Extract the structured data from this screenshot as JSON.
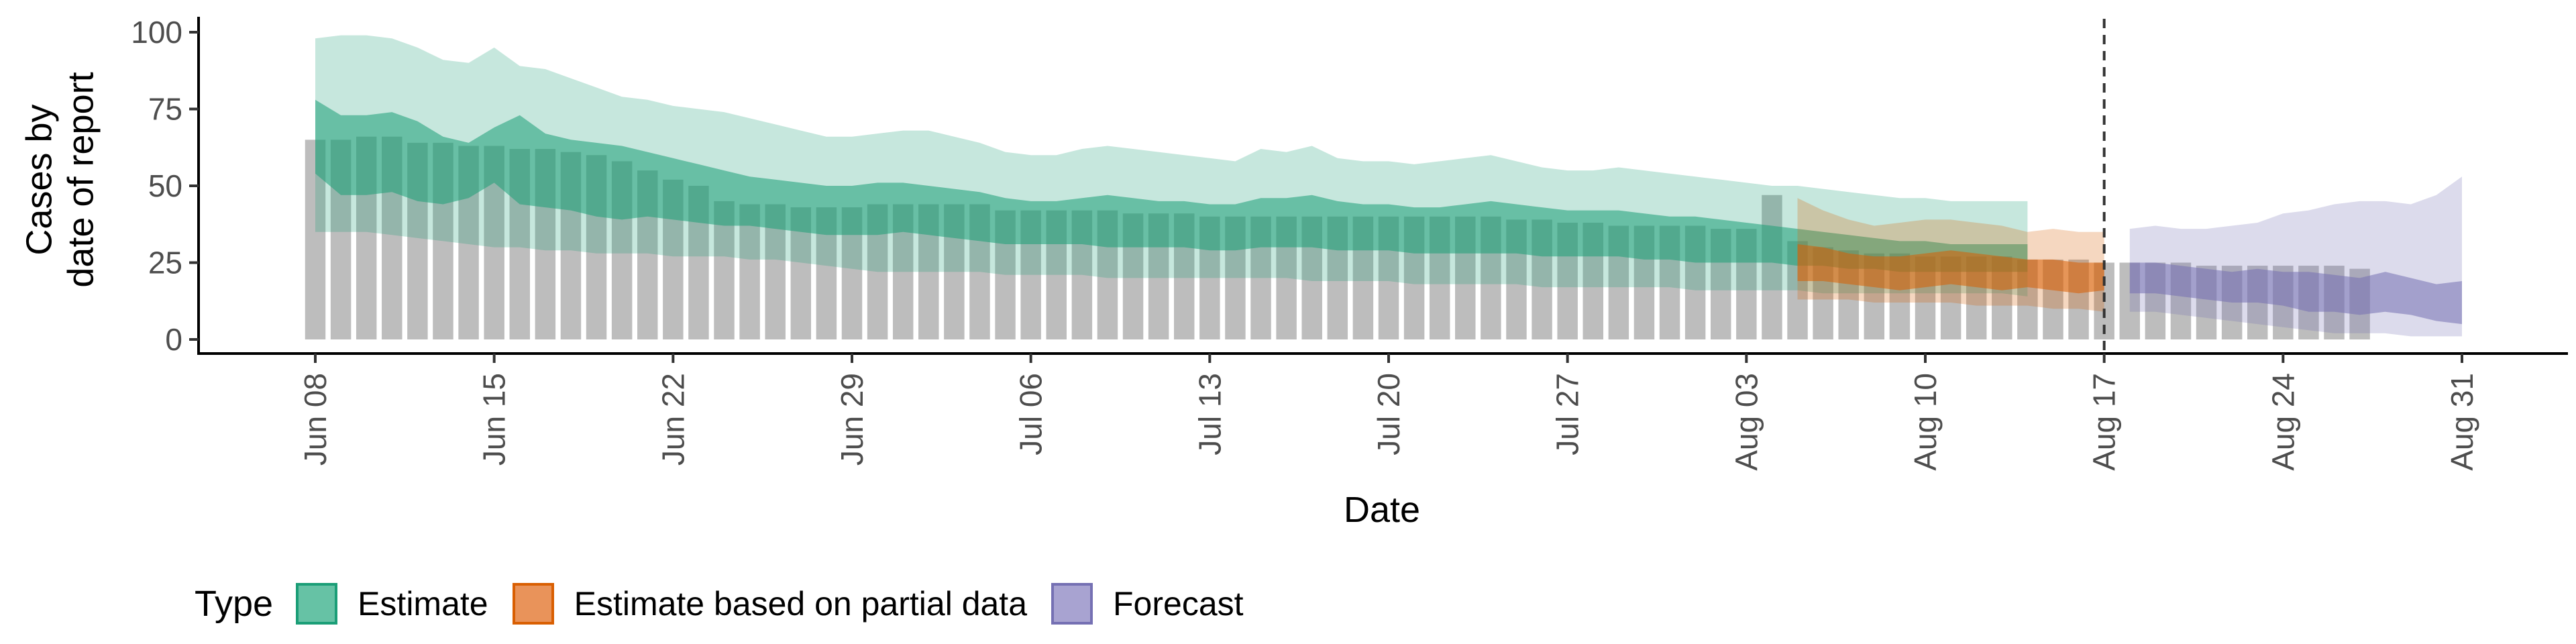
{
  "chart_data": {
    "type": "area",
    "title": "",
    "xlabel": "Date",
    "ylabel": [
      "Cases by",
      "date of report"
    ],
    "ylim": [
      0,
      105
    ],
    "y_ticks": [
      0,
      25,
      50,
      75,
      100
    ],
    "x_tick_labels": [
      "Jun 08",
      "Jun 15",
      "Jun 22",
      "Jun 29",
      "Jul 06",
      "Jul 13",
      "Jul 20",
      "Jul 27",
      "Aug 03",
      "Aug 10",
      "Aug 17",
      "Aug 24",
      "Aug 31"
    ],
    "x_range": [
      "2020-06-08",
      "2020-08-31"
    ],
    "date_year_assumed": 2020,
    "forecast_date": "2020-08-17",
    "legend": {
      "title": "Type",
      "position": "bottom",
      "items": [
        {
          "label": "Estimate",
          "fill": "#66c2a5",
          "border": "#1b9e77"
        },
        {
          "label": "Estimate based on partial data",
          "fill": "#e9935a",
          "border": "#d95f02"
        },
        {
          "label": "Forecast",
          "fill": "#a8a3d1",
          "border": "#7570b3"
        }
      ]
    },
    "colors": {
      "bars": "#bdbdbd",
      "Estimate": "#1b9e77",
      "Estimate based on partial data": "#d95f02",
      "Forecast": "#7570b3",
      "forecast_line": "#333333"
    },
    "reported_cases": {
      "start_date": "2020-06-08",
      "values": [
        65,
        65,
        66,
        66,
        64,
        64,
        63,
        63,
        62,
        62,
        61,
        60,
        58,
        55,
        52,
        50,
        45,
        44,
        44,
        43,
        43,
        43,
        44,
        44,
        44,
        44,
        44,
        42,
        42,
        42,
        42,
        42,
        41,
        41,
        41,
        40,
        40,
        40,
        40,
        40,
        40,
        40,
        40,
        40,
        40,
        40,
        40,
        39,
        39,
        38,
        38,
        37,
        37,
        37,
        37,
        36,
        36,
        47,
        32,
        30,
        29,
        28,
        28,
        27,
        27,
        27,
        27,
        26,
        26,
        26,
        25,
        25,
        25,
        25,
        24,
        24,
        24,
        24,
        24,
        24,
        23
      ]
    },
    "series": [
      {
        "name": "Estimate",
        "start_date": "2020-06-08",
        "lower_90": [
          35,
          35,
          35,
          34,
          33,
          32,
          31,
          30,
          30,
          29,
          29,
          28,
          28,
          28,
          27,
          27,
          27,
          26,
          26,
          25,
          24,
          23,
          22,
          22,
          22,
          22,
          22,
          21,
          21,
          21,
          21,
          20,
          20,
          20,
          20,
          20,
          20,
          20,
          20,
          19,
          19,
          19,
          19,
          18,
          18,
          18,
          18,
          18,
          17,
          17,
          17,
          17,
          17,
          17,
          16,
          16,
          16,
          16,
          16,
          15,
          15,
          15,
          15,
          15,
          15,
          15,
          15,
          14
        ],
        "upper_90": [
          98,
          99,
          99,
          98,
          95,
          91,
          90,
          95,
          89,
          88,
          85,
          82,
          79,
          78,
          76,
          75,
          74,
          72,
          70,
          68,
          66,
          66,
          67,
          68,
          68,
          66,
          64,
          61,
          60,
          60,
          62,
          63,
          62,
          61,
          60,
          59,
          58,
          62,
          61,
          63,
          59,
          58,
          58,
          57,
          58,
          59,
          60,
          58,
          56,
          55,
          55,
          56,
          55,
          54,
          53,
          52,
          51,
          50,
          50,
          49,
          48,
          47,
          46,
          46,
          45,
          45,
          45,
          45
        ],
        "lower_50": [
          54,
          47,
          47,
          48,
          45,
          44,
          46,
          51,
          44,
          43,
          42,
          40,
          39,
          40,
          39,
          38,
          37,
          37,
          36,
          35,
          34,
          34,
          34,
          35,
          34,
          33,
          32,
          31,
          31,
          31,
          31,
          30,
          30,
          30,
          30,
          29,
          29,
          30,
          30,
          30,
          29,
          29,
          29,
          28,
          28,
          28,
          28,
          28,
          27,
          27,
          27,
          27,
          26,
          26,
          25,
          25,
          25,
          25,
          24,
          24,
          23,
          23,
          22,
          22,
          22,
          22,
          22,
          22
        ],
        "upper_50": [
          78,
          73,
          73,
          74,
          71,
          66,
          64,
          69,
          73,
          67,
          65,
          64,
          63,
          61,
          59,
          57,
          55,
          53,
          52,
          51,
          50,
          50,
          51,
          51,
          50,
          49,
          48,
          46,
          45,
          45,
          46,
          47,
          46,
          45,
          45,
          44,
          44,
          46,
          46,
          47,
          45,
          44,
          44,
          43,
          43,
          44,
          45,
          44,
          43,
          42,
          42,
          42,
          41,
          40,
          40,
          39,
          38,
          37,
          36,
          35,
          34,
          33,
          32,
          32,
          31,
          31,
          31,
          31
        ]
      },
      {
        "name": "Estimate based on partial data",
        "start_date": "2020-08-05",
        "lower_90": [
          13,
          13,
          13,
          12,
          12,
          12,
          12,
          11,
          11,
          11,
          10,
          10,
          9
        ],
        "upper_90": [
          46,
          42,
          39,
          37,
          38,
          39,
          39,
          38,
          37,
          35,
          36,
          35,
          35
        ],
        "lower_50": [
          19,
          19,
          18,
          17,
          16,
          17,
          18,
          17,
          16,
          17,
          16,
          15,
          16
        ],
        "upper_50": [
          31,
          30,
          28,
          27,
          27,
          28,
          29,
          28,
          27,
          26,
          26,
          25,
          25
        ]
      },
      {
        "name": "Forecast",
        "start_date": "2020-08-18",
        "lower_90": [
          9,
          9,
          8,
          7,
          6,
          5,
          4,
          3,
          2,
          2,
          2,
          1,
          1,
          1
        ],
        "upper_90": [
          36,
          37,
          36,
          36,
          37,
          38,
          41,
          42,
          44,
          45,
          45,
          44,
          47,
          53
        ],
        "lower_50": [
          15,
          15,
          14,
          13,
          12,
          12,
          11,
          9,
          9,
          8,
          9,
          8,
          6,
          5
        ],
        "upper_50": [
          25,
          25,
          24,
          23,
          22,
          23,
          22,
          22,
          21,
          20,
          22,
          20,
          18,
          19
        ]
      }
    ],
    "grid": false
  }
}
